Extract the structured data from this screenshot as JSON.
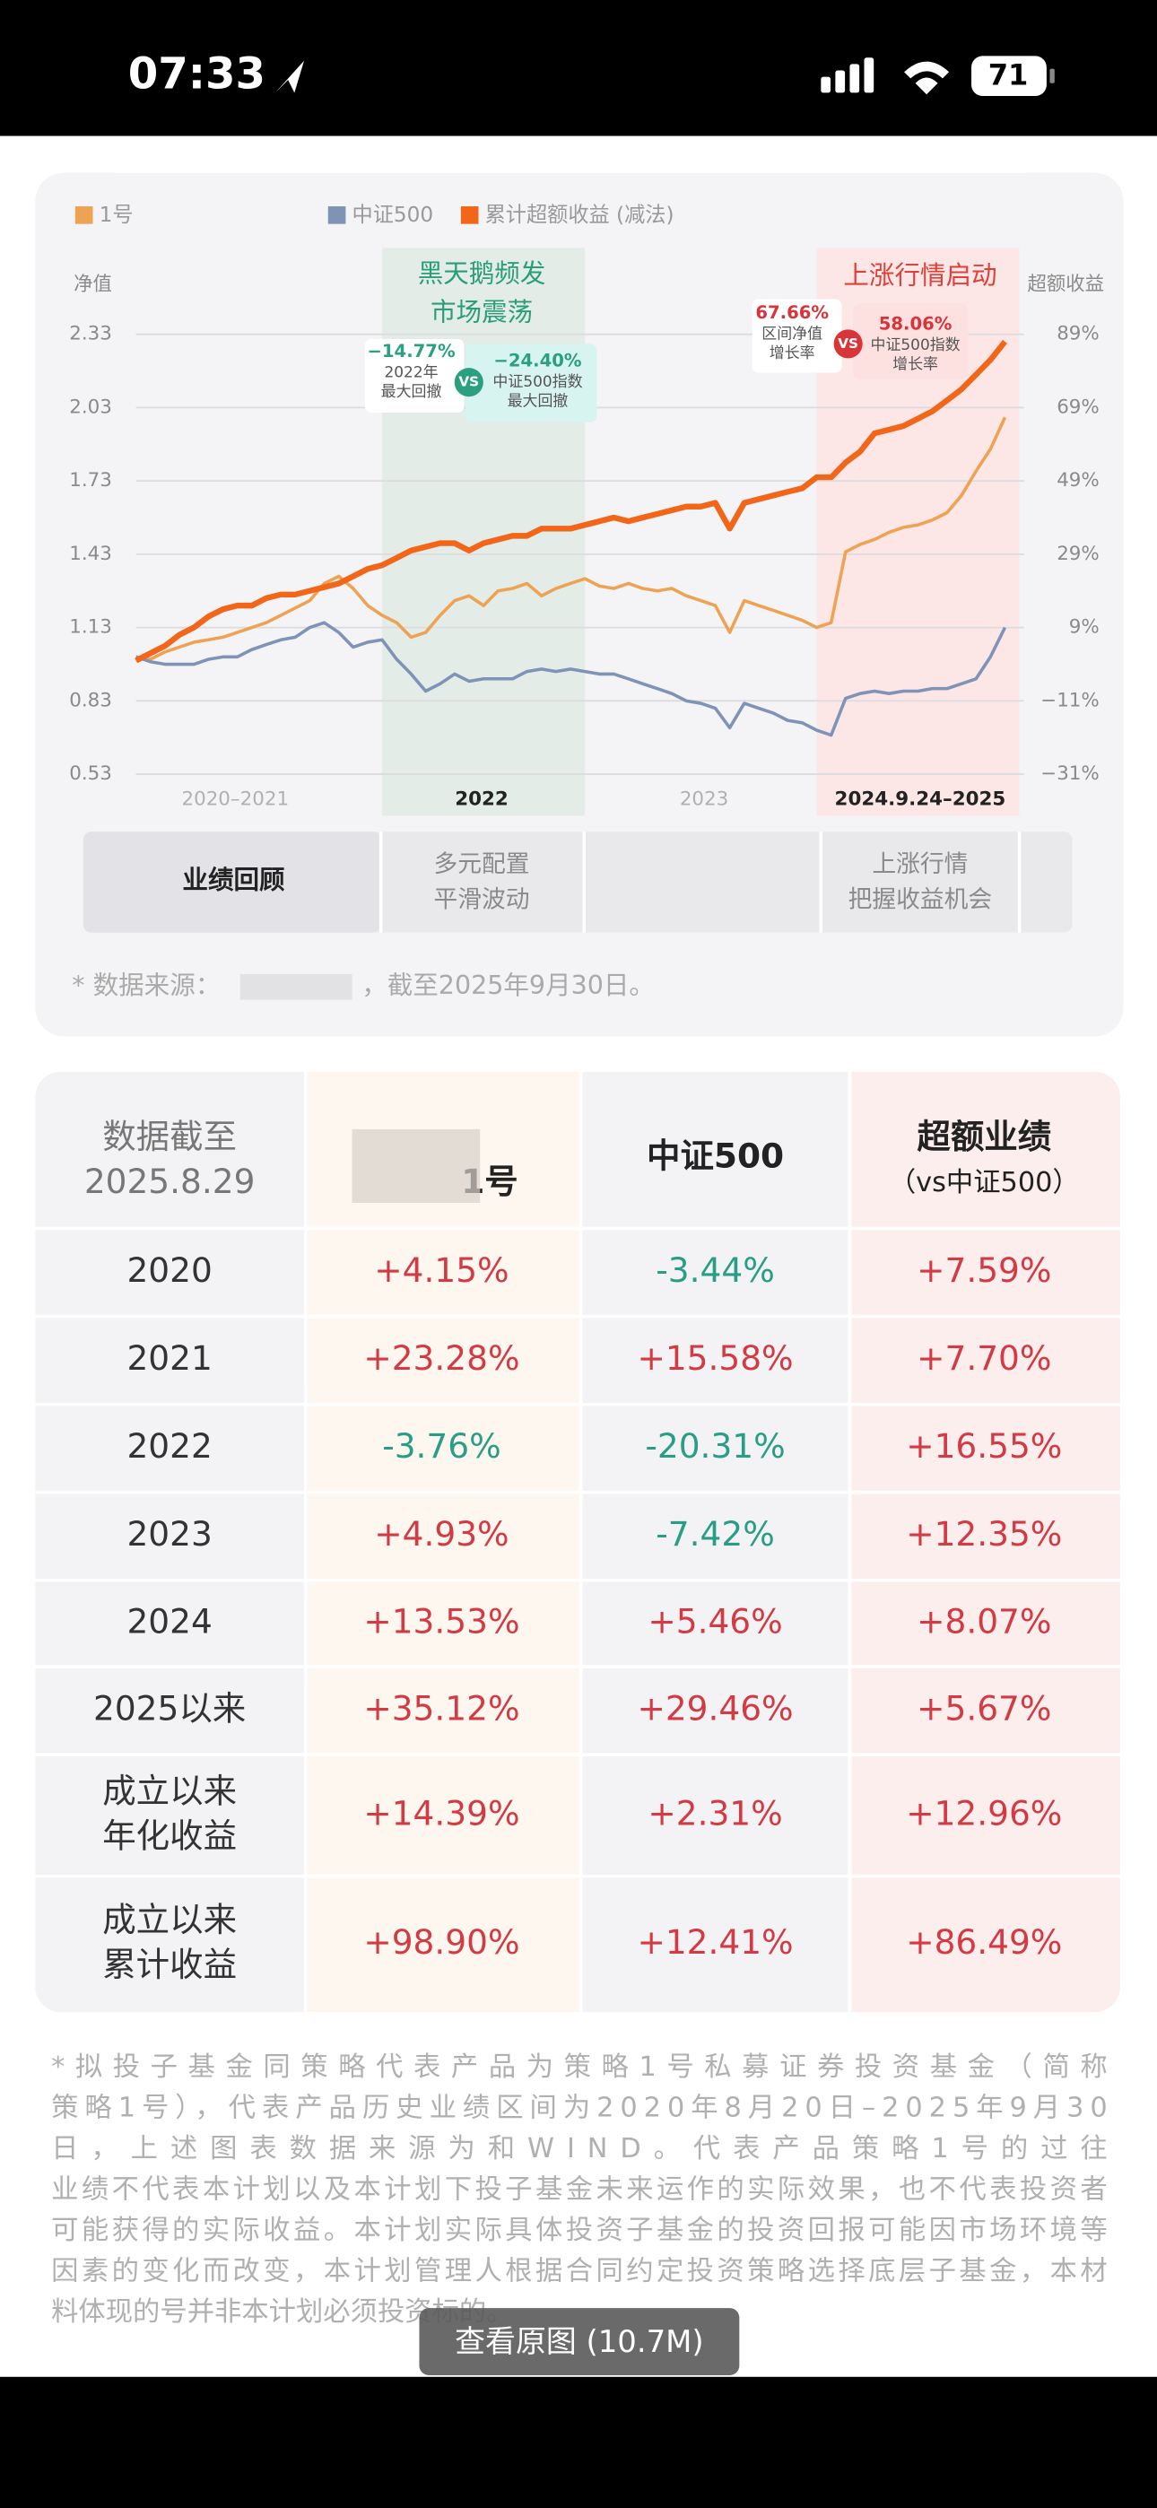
{
  "status_bar": {
    "time": "07:33",
    "battery": "71"
  },
  "chart_data": {
    "type": "line",
    "y_label": "净值",
    "y2_label": "超额收益",
    "period_labels": [
      "2020–2021",
      "2022",
      "2023",
      "2024.9.24–2025"
    ],
    "bands": [
      {
        "start": 17,
        "end": 30,
        "color": "#e3ece7"
      },
      {
        "start": 47,
        "end": 60,
        "color": "#fde6e6"
      }
    ],
    "ylim": [
      0.53,
      2.33
    ],
    "yticks": [
      0.53,
      0.83,
      1.13,
      1.43,
      1.73,
      2.03,
      2.33
    ],
    "y2lim": [
      -31,
      89
    ],
    "y2ticks": [
      {
        "value": -31,
        "label": "−31%"
      },
      {
        "value": -11,
        "label": "−11%"
      },
      {
        "value": 9,
        "label": "9%"
      },
      {
        "value": 29,
        "label": "29%"
      },
      {
        "value": 49,
        "label": "49%"
      },
      {
        "value": 69,
        "label": "69%"
      },
      {
        "value": 89,
        "label": "89%"
      }
    ],
    "series": [
      {
        "name": "1号",
        "color": "#eea254",
        "values": [
          1.01,
          1.0,
          1.03,
          1.05,
          1.07,
          1.08,
          1.09,
          1.11,
          1.13,
          1.15,
          1.18,
          1.21,
          1.24,
          1.31,
          1.34,
          1.29,
          1.22,
          1.18,
          1.15,
          1.09,
          1.11,
          1.18,
          1.24,
          1.26,
          1.22,
          1.28,
          1.29,
          1.31,
          1.26,
          1.29,
          1.31,
          1.33,
          1.3,
          1.29,
          1.31,
          1.29,
          1.28,
          1.29,
          1.26,
          1.24,
          1.22,
          1.11,
          1.24,
          1.22,
          1.2,
          1.18,
          1.16,
          1.13,
          1.15,
          1.44,
          1.47,
          1.49,
          1.52,
          1.54,
          1.55,
          1.57,
          1.6,
          1.67,
          1.77,
          1.86,
          1.99
        ]
      },
      {
        "name": "中证500",
        "color": "#7f93b6",
        "values": [
          1.01,
          0.99,
          0.98,
          0.98,
          0.98,
          1.0,
          1.01,
          1.01,
          1.04,
          1.06,
          1.08,
          1.09,
          1.13,
          1.15,
          1.11,
          1.05,
          1.07,
          1.08,
          1.0,
          0.94,
          0.87,
          0.9,
          0.94,
          0.91,
          0.92,
          0.92,
          0.92,
          0.95,
          0.96,
          0.95,
          0.96,
          0.95,
          0.94,
          0.94,
          0.92,
          0.9,
          0.88,
          0.86,
          0.83,
          0.82,
          0.8,
          0.72,
          0.82,
          0.8,
          0.78,
          0.75,
          0.74,
          0.71,
          0.69,
          0.84,
          0.86,
          0.87,
          0.86,
          0.87,
          0.87,
          0.88,
          0.88,
          0.9,
          0.92,
          1.01,
          1.13
        ]
      },
      {
        "name": "累计超额收益 (减法)",
        "color": "#f2661a",
        "axis": "y2",
        "values": [
          0,
          2,
          4,
          7,
          9,
          12,
          14,
          15,
          15,
          17,
          18,
          18,
          19,
          20,
          21,
          23,
          25,
          26,
          28,
          30,
          31,
          32,
          32,
          30,
          32,
          33,
          34,
          34,
          36,
          36,
          36,
          37,
          38,
          39,
          38,
          39,
          40,
          41,
          42,
          42,
          43,
          36,
          43,
          44,
          45,
          46,
          47,
          50,
          50,
          54,
          57,
          62,
          63,
          64,
          66,
          68,
          71,
          74,
          78,
          82,
          87
        ]
      }
    ],
    "annotations": {
      "black_swan": [
        "黑天鹅频发",
        "市场震荡"
      ],
      "rally": "上涨行情启动",
      "callout_2022": {
        "fund": "−14.77%",
        "fund_label": [
          "2022年",
          "最大回撤"
        ],
        "vs": "VS",
        "index": "−24.40%",
        "index_label": [
          "中证500指数",
          "最大回撤"
        ]
      },
      "callout_rally": {
        "fund": "67.66%",
        "fund_label": [
          "区间净值",
          "增长率"
        ],
        "vs": "VS",
        "index": "58.06%",
        "index_label": [
          "中证500指数",
          "增长率"
        ]
      }
    }
  },
  "chart_panel": {
    "phases": [
      [
        "业绩回顾"
      ],
      [
        "多元配置",
        "平滑波动"
      ],
      [
        "上涨行情",
        "把握收益机会"
      ]
    ],
    "source": [
      "* 数据来源：",
      "，截至2025年9月30日。"
    ]
  },
  "table": {
    "header": [
      [
        "数据截至",
        "2025.8.29"
      ],
      [
        "1号"
      ],
      [
        "中证500"
      ],
      [
        "超额业绩",
        "（vs中证500）"
      ]
    ],
    "rows": [
      [
        [
          "2020"
        ],
        "+4.15%",
        "-3.44%",
        "+7.59%"
      ],
      [
        [
          "2021"
        ],
        "+23.28%",
        "+15.58%",
        "+7.70%"
      ],
      [
        [
          "2022"
        ],
        "-3.76%",
        "-20.31%",
        "+16.55%"
      ],
      [
        [
          "2023"
        ],
        "+4.93%",
        "-7.42%",
        "+12.35%"
      ],
      [
        [
          "2024"
        ],
        "+13.53%",
        "+5.46%",
        "+8.07%"
      ],
      [
        [
          "2025以来"
        ],
        "+35.12%",
        "+29.46%",
        "+5.67%"
      ],
      [
        [
          "成立以来",
          "年化收益"
        ],
        "+14.39%",
        "+2.31%",
        "+12.96%"
      ],
      [
        [
          "成立以来",
          "累计收益"
        ],
        "+98.90%",
        "+12.41%",
        "+86.49%"
      ]
    ]
  },
  "footnote": [
    "*拟投子基金同策略代表产品为策略1号私募证券投资基金（简称",
    "策略1号），代表产品历史业绩区间为2020年8月20日–2025年9月30",
    "日，上述图表数据来源为和WIND。代表产品策略1号的过往",
    "业绩不代表本计划以及本计划下投子基金未来运作的实际效果，也不代表投资者",
    "可能获得的实际收益。本计划实际具体投资子基金的投资回报可能因市场环境等",
    "因素的变化而改变，本计划管理人根据合同约定投资策略选择底层子基金，本材",
    "料体现的号并非本计划必须投资标的。"
  ],
  "button": "查看原图 (10.7M)"
}
